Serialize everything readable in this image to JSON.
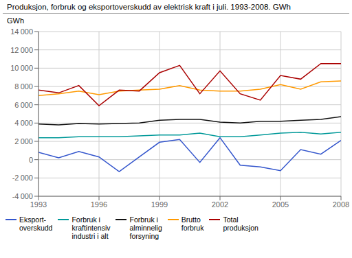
{
  "chart_data": {
    "type": "line",
    "title": "Produksjon, forbruk og eksportoverskudd av elektrisk kraft i juli. 1993-2008. GWh",
    "y_label": "GWh",
    "x": [
      1993,
      1994,
      1995,
      1996,
      1997,
      1998,
      1999,
      2000,
      2001,
      2002,
      2003,
      2004,
      2005,
      2006,
      2007,
      2008
    ],
    "series": [
      {
        "name": "Eksport-\noverskudd",
        "color": "#3355cc",
        "values": [
          800,
          200,
          900,
          300,
          -1300,
          300,
          1900,
          2200,
          -300,
          2400,
          -600,
          -800,
          -1200,
          1100,
          600,
          2100
        ]
      },
      {
        "name": "Forbruk i\nkraftintensiv\nindustri i alt",
        "color": "#009999",
        "values": [
          2400,
          2400,
          2500,
          2500,
          2500,
          2600,
          2700,
          2700,
          2900,
          2500,
          2500,
          2700,
          2900,
          3000,
          2800,
          3000
        ]
      },
      {
        "name": "Forbruk i\nalminnelig\nforsyning",
        "color": "#111111",
        "values": [
          3900,
          3800,
          3950,
          3900,
          3950,
          4000,
          4300,
          4400,
          4400,
          4100,
          4000,
          4200,
          4200,
          4300,
          4400,
          4700
        ]
      },
      {
        "name": "Brutto\nforbruk",
        "color": "#ff9900",
        "values": [
          7000,
          7200,
          7500,
          7100,
          7500,
          7600,
          7700,
          8100,
          7600,
          7500,
          7500,
          7700,
          8200,
          7700,
          8500,
          8600
        ]
      },
      {
        "name": "Total\nproduksjon",
        "color": "#aa0000",
        "values": [
          7600,
          7300,
          8100,
          5900,
          7600,
          7500,
          9500,
          10300,
          7200,
          9700,
          7200,
          6500,
          9200,
          8800,
          10500,
          10500
        ]
      }
    ],
    "xlim": [
      1993,
      2008
    ],
    "xticks": [
      1993,
      1996,
      1999,
      2002,
      2005,
      2008
    ],
    "ylim": [
      -4000,
      14000
    ],
    "yticks": [
      {
        "value": -4000,
        "label": "-4 000"
      },
      {
        "value": -2000,
        "label": "-2 000"
      },
      0,
      {
        "value": 2000,
        "label": "2 000"
      },
      {
        "value": 4000,
        "label": "4 000"
      },
      {
        "value": 6000,
        "label": "6 000"
      },
      {
        "value": 8000,
        "label": "8 000"
      },
      {
        "value": 10000,
        "label": "10 000"
      },
      {
        "value": 12000,
        "label": "12 000"
      },
      {
        "value": 14000,
        "label": "14 000"
      }
    ],
    "grid": true
  }
}
